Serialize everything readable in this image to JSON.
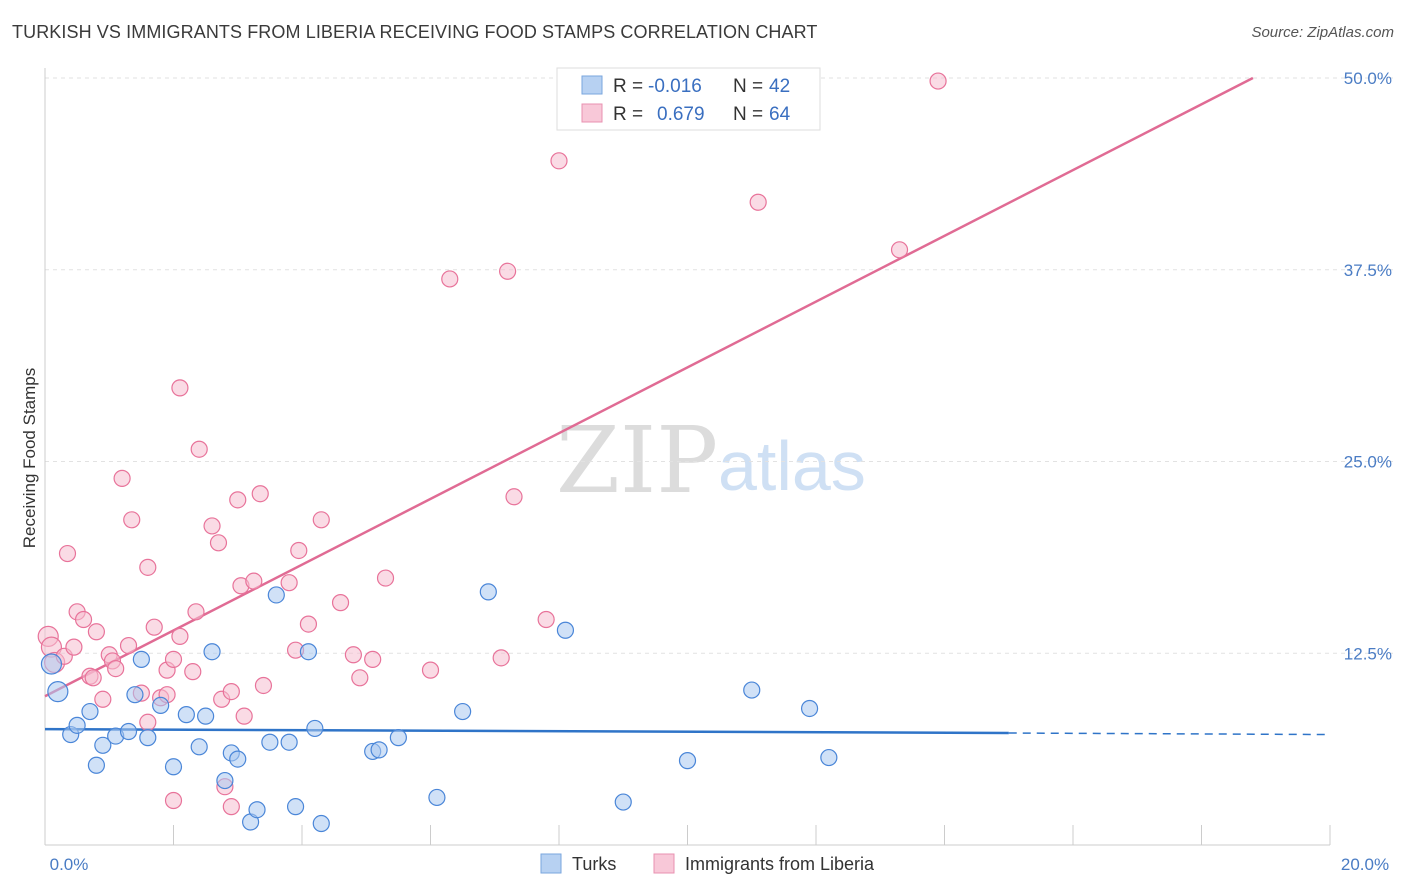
{
  "title": "TURKISH VS IMMIGRANTS FROM LIBERIA RECEIVING FOOD STAMPS CORRELATION CHART",
  "source": "Source: ZipAtlas.com",
  "watermark": {
    "zip": "ZIP",
    "atlas": "atlas"
  },
  "colors": {
    "blue": "#4a86d8",
    "blue_fill": "#a9c8f0",
    "pink": "#e8739a",
    "pink_fill": "#f6bdd0",
    "tick": "#4a7cc4"
  },
  "legend": {
    "r_label": "R =",
    "n_label": "N =",
    "series": [
      {
        "name": "Turks",
        "r": "-0.016",
        "n": "42"
      },
      {
        "name": "Immigrants from Liberia",
        "r": "0.679",
        "n": "64"
      }
    ]
  },
  "chart_data": {
    "type": "scatter",
    "title": "TURKISH VS IMMIGRANTS FROM LIBERIA RECEIVING FOOD STAMPS CORRELATION CHART",
    "xlabel": "",
    "ylabel": "Receiving Food Stamps",
    "xlim": [
      0,
      20
    ],
    "ylim": [
      0,
      50
    ],
    "x_tick_labels": [
      {
        "value": 0,
        "label": "0.0%"
      },
      {
        "value": 20,
        "label": "20.0%"
      }
    ],
    "y_tick_labels": [
      {
        "value": 12.5,
        "label": "12.5%"
      },
      {
        "value": 25,
        "label": "25.0%"
      },
      {
        "value": 37.5,
        "label": "37.5%"
      },
      {
        "value": 50,
        "label": "50.0%"
      }
    ],
    "series": [
      {
        "name": "Turks",
        "r": -0.016,
        "n": 42,
        "trend": {
          "x0": 0,
          "y0": 7.55,
          "x1": 15,
          "y1": 7.3,
          "dashed_to_x": 20,
          "dashed_to_y": 7.2
        },
        "points": [
          [
            0.1,
            11.8
          ],
          [
            0.2,
            10.0
          ],
          [
            0.4,
            7.2
          ],
          [
            0.5,
            7.8
          ],
          [
            0.7,
            8.7
          ],
          [
            0.8,
            5.2
          ],
          [
            0.9,
            6.5
          ],
          [
            1.1,
            7.1
          ],
          [
            1.3,
            7.4
          ],
          [
            1.4,
            9.8
          ],
          [
            1.5,
            12.1
          ],
          [
            1.6,
            7.0
          ],
          [
            1.8,
            9.1
          ],
          [
            2.0,
            5.1
          ],
          [
            2.2,
            8.5
          ],
          [
            2.4,
            6.4
          ],
          [
            2.5,
            8.4
          ],
          [
            2.6,
            12.6
          ],
          [
            2.8,
            4.2
          ],
          [
            2.9,
            6.0
          ],
          [
            3.0,
            5.6
          ],
          [
            3.2,
            1.5
          ],
          [
            3.3,
            2.3
          ],
          [
            3.5,
            6.7
          ],
          [
            3.6,
            16.3
          ],
          [
            3.8,
            6.7
          ],
          [
            3.9,
            2.5
          ],
          [
            4.1,
            12.6
          ],
          [
            4.2,
            7.6
          ],
          [
            4.3,
            1.4
          ],
          [
            5.1,
            6.1
          ],
          [
            5.2,
            6.2
          ],
          [
            5.5,
            7.0
          ],
          [
            6.1,
            3.1
          ],
          [
            6.5,
            8.7
          ],
          [
            6.9,
            16.5
          ],
          [
            8.1,
            14.0
          ],
          [
            9.0,
            2.8
          ],
          [
            10.0,
            5.5
          ],
          [
            11.0,
            10.1
          ],
          [
            11.9,
            8.9
          ],
          [
            12.2,
            5.7
          ]
        ]
      },
      {
        "name": "Immigrants from Liberia",
        "r": 0.679,
        "n": 64,
        "trend": {
          "x0": 0,
          "y0": 9.7,
          "x1": 18.8,
          "y1": 50.0
        },
        "points": [
          [
            0.05,
            13.6
          ],
          [
            0.1,
            12.9
          ],
          [
            0.15,
            11.9
          ],
          [
            0.3,
            12.3
          ],
          [
            0.35,
            19.0
          ],
          [
            0.45,
            12.9
          ],
          [
            0.5,
            15.2
          ],
          [
            0.6,
            14.7
          ],
          [
            0.7,
            11.0
          ],
          [
            0.75,
            10.9
          ],
          [
            0.8,
            13.9
          ],
          [
            0.9,
            9.5
          ],
          [
            1.0,
            12.4
          ],
          [
            1.05,
            12.0
          ],
          [
            1.1,
            11.5
          ],
          [
            1.2,
            23.9
          ],
          [
            1.3,
            13.0
          ],
          [
            1.35,
            21.2
          ],
          [
            1.5,
            9.9
          ],
          [
            1.6,
            8.0
          ],
          [
            1.6,
            18.1
          ],
          [
            1.7,
            14.2
          ],
          [
            1.8,
            9.6
          ],
          [
            1.9,
            9.8
          ],
          [
            1.9,
            11.4
          ],
          [
            2.0,
            12.1
          ],
          [
            2.1,
            13.6
          ],
          [
            2.1,
            29.8
          ],
          [
            2.3,
            11.3
          ],
          [
            2.35,
            15.2
          ],
          [
            2.4,
            25.8
          ],
          [
            2.6,
            20.8
          ],
          [
            2.7,
            19.7
          ],
          [
            2.75,
            9.5
          ],
          [
            2.8,
            3.8
          ],
          [
            2.9,
            10.0
          ],
          [
            3.0,
            22.5
          ],
          [
            3.05,
            16.9
          ],
          [
            3.1,
            8.4
          ],
          [
            3.25,
            17.2
          ],
          [
            3.35,
            22.9
          ],
          [
            3.4,
            10.4
          ],
          [
            3.8,
            17.1
          ],
          [
            3.9,
            12.7
          ],
          [
            3.95,
            19.2
          ],
          [
            4.1,
            14.4
          ],
          [
            4.3,
            21.2
          ],
          [
            4.6,
            15.8
          ],
          [
            4.8,
            12.4
          ],
          [
            4.9,
            10.9
          ],
          [
            5.1,
            12.1
          ],
          [
            5.3,
            17.4
          ],
          [
            6.0,
            11.4
          ],
          [
            6.3,
            36.9
          ],
          [
            7.1,
            12.2
          ],
          [
            7.2,
            37.4
          ],
          [
            7.3,
            22.7
          ],
          [
            7.8,
            14.7
          ],
          [
            8.0,
            44.6
          ],
          [
            11.1,
            41.9
          ],
          [
            13.3,
            38.8
          ],
          [
            13.9,
            49.8
          ],
          [
            2.0,
            2.9
          ],
          [
            2.9,
            2.5
          ]
        ]
      }
    ]
  }
}
